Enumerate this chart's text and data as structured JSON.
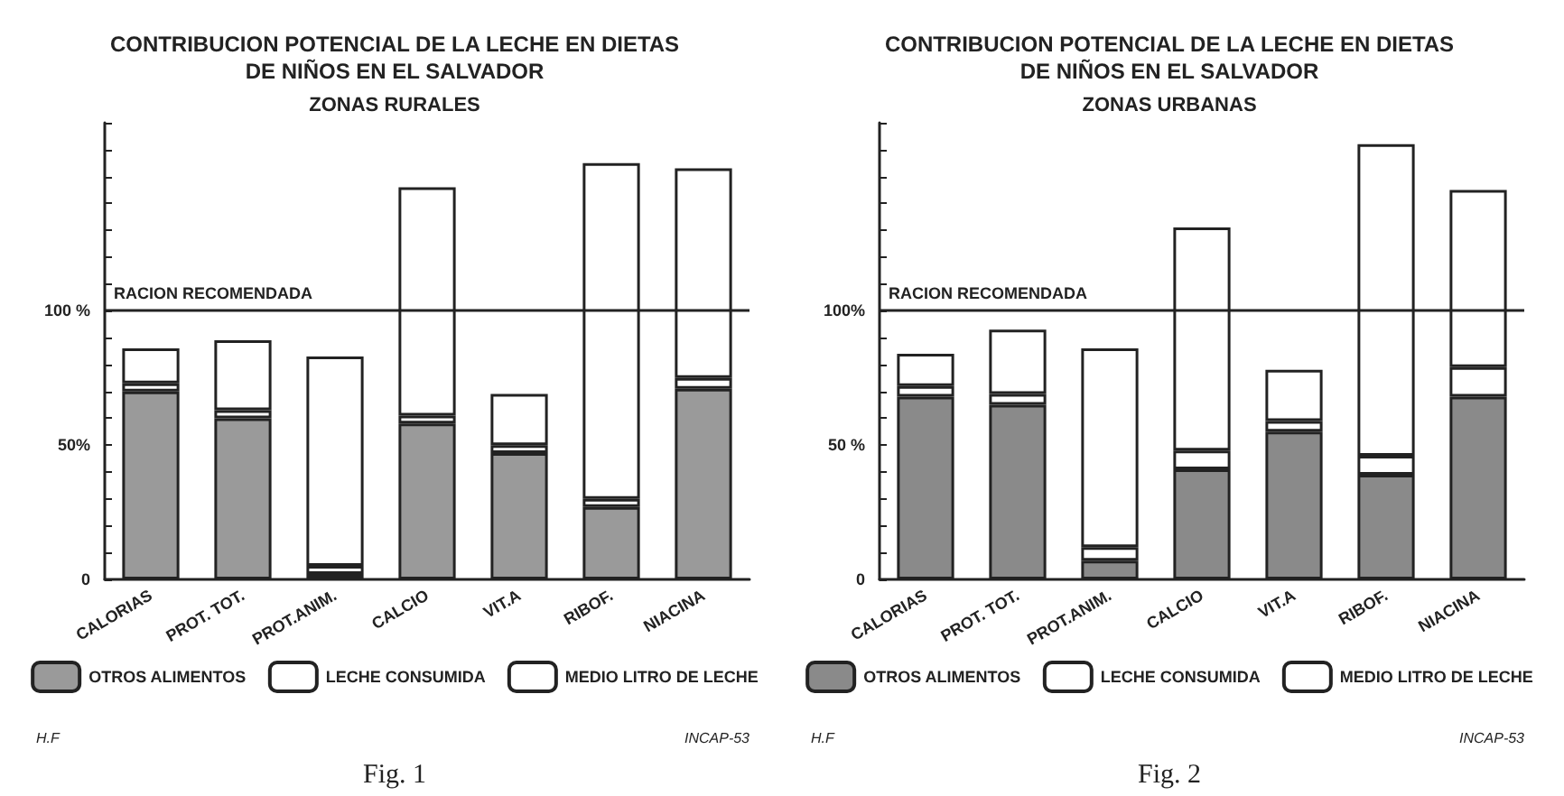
{
  "chart_data": [
    {
      "type": "bar",
      "title": "CONTRIBUCION POTENCIAL DE LA LECHE EN DIETAS\nDE NIÑOS EN EL SALVADOR",
      "subtitle": "ZONAS RURALES",
      "categories": [
        "CALORIAS",
        "PROT. TOT.",
        "PROT.ANIM.",
        "CALCIO",
        "VIT.A",
        "RIBOF.",
        "NIACINA"
      ],
      "stacked": true,
      "series": [
        {
          "name": "OTROS ALIMENTOS",
          "color": "#9a9a9a",
          "values": [
            70,
            60,
            2,
            58,
            47,
            27,
            71
          ]
        },
        {
          "name": "LECHE CONSUMIDA",
          "color": "#ffffff",
          "values": [
            3,
            3,
            3,
            3,
            3,
            3,
            4
          ]
        },
        {
          "name": "MEDIO LITRO DE LECHE",
          "color": "#ffffff",
          "values": [
            13,
            26,
            78,
            85,
            19,
            125,
            78
          ]
        }
      ],
      "ylim": [
        0,
        170
      ],
      "yticks": [
        0,
        {
          "value": 10,
          "label": null
        },
        {
          "value": 20,
          "label": null
        },
        {
          "value": 30,
          "label": null
        },
        {
          "value": 40,
          "label": null
        },
        {
          "value": 50,
          "label": "50%"
        },
        {
          "value": 60,
          "label": null
        },
        {
          "value": 70,
          "label": null
        },
        {
          "value": 80,
          "label": null
        },
        {
          "value": 90,
          "label": null
        },
        {
          "value": 100,
          "label": "100 %"
        },
        {
          "value": 110,
          "label": null
        },
        {
          "value": 120,
          "label": null
        },
        {
          "value": 130,
          "label": null
        },
        {
          "value": 140,
          "label": null
        },
        {
          "value": 150,
          "label": null
        },
        {
          "value": 160,
          "label": null
        },
        {
          "value": 170,
          "label": null
        }
      ],
      "ref_lines": [
        {
          "axis": "y",
          "value": 100,
          "label": "RACION RECOMENDADA"
        }
      ],
      "grid": false,
      "legend": "bottom",
      "annotations": [
        "H.F",
        "INCAP-53",
        "Fig. 1"
      ]
    },
    {
      "type": "bar",
      "title": "CONTRIBUCION POTENCIAL DE LA LECHE EN DIETAS\nDE NIÑOS EN EL SALVADOR",
      "subtitle": "ZONAS URBANAS",
      "categories": [
        "CALORIAS",
        "PROT. TOT.",
        "PROT.ANIM.",
        "CALCIO",
        "VIT.A",
        "RIBOF.",
        "NIACINA"
      ],
      "stacked": true,
      "series": [
        {
          "name": "OTROS ALIMENTOS",
          "color": "#8a8a8a",
          "values": [
            68,
            65,
            7,
            41,
            55,
            39,
            68
          ]
        },
        {
          "name": "LECHE CONSUMIDA",
          "color": "#ffffff",
          "values": [
            4,
            4,
            5,
            7,
            4,
            7,
            11
          ]
        },
        {
          "name": "MEDIO LITRO DE LECHE",
          "color": "#ffffff",
          "values": [
            12,
            24,
            74,
            83,
            19,
            116,
            66
          ]
        }
      ],
      "ylim": [
        0,
        170
      ],
      "yticks": [
        0,
        {
          "value": 10,
          "label": null
        },
        {
          "value": 20,
          "label": null
        },
        {
          "value": 30,
          "label": null
        },
        {
          "value": 40,
          "label": null
        },
        {
          "value": 50,
          "label": "50 %"
        },
        {
          "value": 60,
          "label": null
        },
        {
          "value": 70,
          "label": null
        },
        {
          "value": 80,
          "label": null
        },
        {
          "value": 90,
          "label": null
        },
        {
          "value": 100,
          "label": "100%"
        },
        {
          "value": 110,
          "label": null
        },
        {
          "value": 120,
          "label": null
        },
        {
          "value": 130,
          "label": null
        },
        {
          "value": 140,
          "label": null
        },
        {
          "value": 150,
          "label": null
        },
        {
          "value": 160,
          "label": null
        },
        {
          "value": 170,
          "label": null
        }
      ],
      "ref_lines": [
        {
          "axis": "y",
          "value": 100,
          "label": "RACION RECOMENDADA"
        }
      ],
      "grid": false,
      "legend": "bottom",
      "annotations": [
        "H.F",
        "INCAP-53",
        "Fig. 2"
      ]
    }
  ]
}
